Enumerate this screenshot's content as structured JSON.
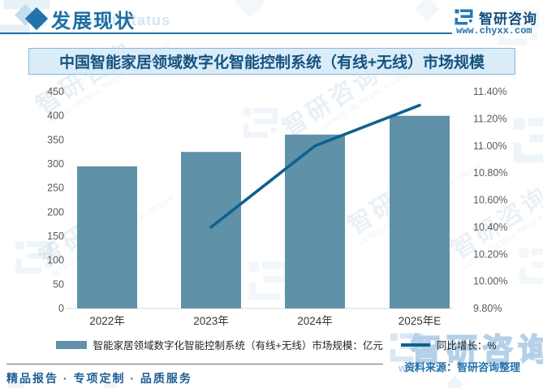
{
  "header": {
    "section_title": "发展现状",
    "section_title_ghost": "ment status",
    "brand": "智研咨询",
    "website": "www.chyxx.com"
  },
  "chart_title": "中国智能家居领域数字化智能控制系统（有线+无线）市场规模",
  "chart_data": {
    "type": "bar+line",
    "categories": [
      "2022年",
      "2023年",
      "2024年",
      "2025年E"
    ],
    "series": [
      {
        "name": "智能家居领域数字化智能控制系统（有线+无线）市场规模：亿元",
        "type": "bar",
        "axis": "left",
        "values": [
          295,
          325,
          361,
          400
        ]
      },
      {
        "name": "同比增长：%",
        "type": "line",
        "axis": "right",
        "values": [
          null,
          10.4,
          11.0,
          11.3
        ]
      }
    ],
    "left_axis": {
      "min": 0,
      "max": 450,
      "step": 50,
      "ticks": [
        "450",
        "400",
        "350",
        "300",
        "250",
        "200",
        "150",
        "100",
        "50",
        "0"
      ]
    },
    "right_axis": {
      "min": 9.8,
      "max": 11.4,
      "step": 0.2,
      "ticks": [
        "11.40%",
        "11.20%",
        "11.00%",
        "10.80%",
        "10.60%",
        "10.40%",
        "10.20%",
        "10.00%",
        "9.80%"
      ]
    },
    "grid": false,
    "legend_position": "bottom"
  },
  "footer": {
    "slogan": "精品报告 · 专项定制 · 品质服务",
    "source": "资料来源：智研咨询整理"
  },
  "watermark": {
    "brand": "智研咨询",
    "subtitle": "INTELLIGENCE RESEARCH GROUP",
    "url_fragment": "w w"
  },
  "colors": {
    "accent": "#2272ab",
    "bar": "#5f91a9",
    "line": "#10618d",
    "title_text": "#15537f",
    "title_bg": "#d9ecf8",
    "axis_text": "#595959"
  }
}
